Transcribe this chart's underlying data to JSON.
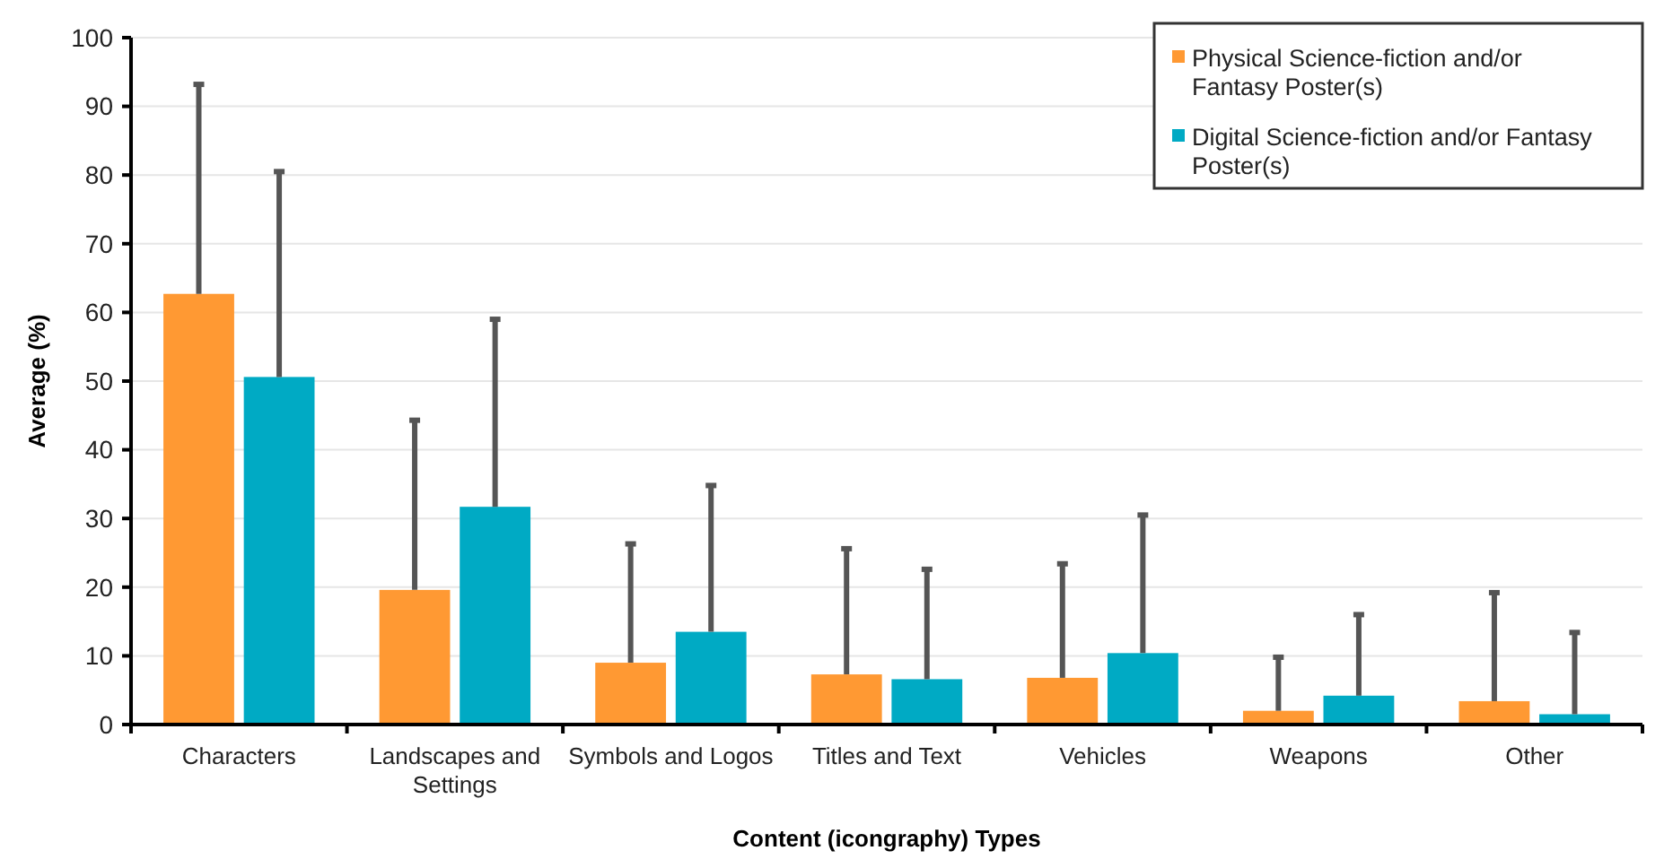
{
  "chart_data": {
    "type": "bar",
    "xlabel": "Content (icongraphy) Types",
    "ylabel": "Average (%)",
    "categories": [
      "Characters",
      "Landscapes and Settings",
      "Symbols and Logos",
      "Titles and Text",
      "Vehicles",
      "Weapons",
      "Other"
    ],
    "series": [
      {
        "name": "Physical Science-fiction and/or Fantasy Poster(s)",
        "color": "#ff9933",
        "values": [
          62.7,
          19.6,
          9.0,
          7.3,
          6.8,
          2.0,
          3.4
        ],
        "errors": [
          [
            62.7,
            93.2
          ],
          [
            19.6,
            44.3
          ],
          [
            9.0,
            26.3
          ],
          [
            7.3,
            25.6
          ],
          [
            6.8,
            23.4
          ],
          [
            2.0,
            9.8
          ],
          [
            3.4,
            19.2
          ]
        ]
      },
      {
        "name": "Digital Science-fiction and/or Fantasy Poster(s)",
        "color": "#00aac4",
        "values": [
          50.6,
          31.7,
          13.5,
          6.6,
          10.4,
          4.2,
          1.5
        ],
        "errors": [
          [
            50.6,
            80.5
          ],
          [
            31.7,
            59.0
          ],
          [
            13.5,
            34.8
          ],
          [
            6.6,
            22.6
          ],
          [
            10.4,
            30.5
          ],
          [
            4.2,
            16.0
          ],
          [
            1.5,
            13.4
          ]
        ]
      }
    ],
    "ylim": [
      0,
      100
    ],
    "yticks": [
      0,
      10,
      20,
      30,
      40,
      50,
      60,
      70,
      80,
      90,
      100
    ],
    "grid": "y",
    "legend": "top right"
  }
}
